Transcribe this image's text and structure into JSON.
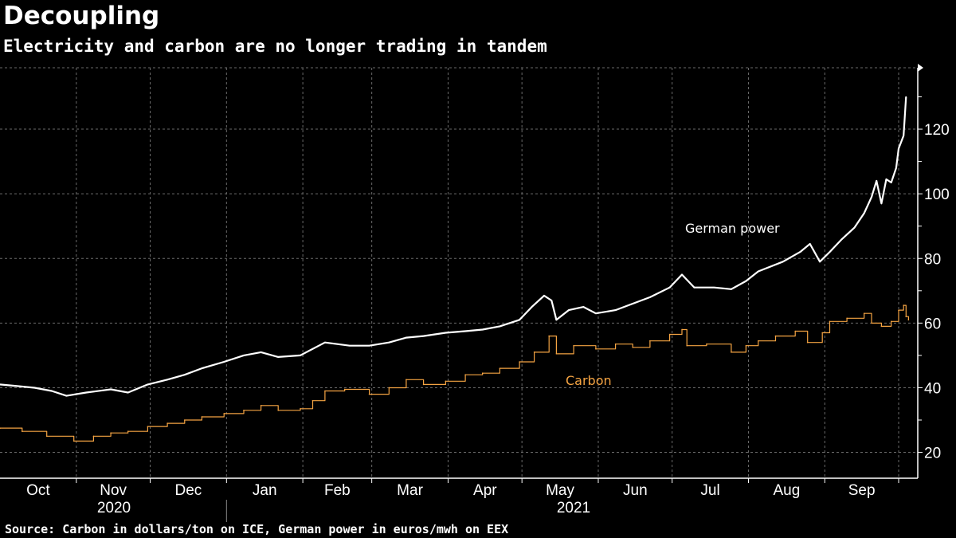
{
  "title": "Decoupling",
  "subtitle": "Electricity and carbon are no longer trading in tandem",
  "source": "Source: Carbon in dollars/ton on ICE, German power in euros/mwh on EEX",
  "chart_data": {
    "type": "line",
    "title": "Decoupling",
    "subtitle": "Electricity and carbon are no longer trading in tandem",
    "xlim": [
      "2020-10-01",
      "2021-10-01"
    ],
    "ylim": [
      12,
      139
    ],
    "y_axis_side": "right",
    "y_ticks": [
      20,
      40,
      60,
      80,
      100,
      120
    ],
    "x_tick_labels": [
      "Oct",
      "Nov",
      "Dec",
      "Jan",
      "Feb",
      "Mar",
      "Apr",
      "May",
      "Jun",
      "Jul",
      "Aug",
      "Sep"
    ],
    "year_labels": [
      "2020",
      "2021"
    ],
    "grid": true,
    "colors": {
      "German power": "#ffffff",
      "Carbon": "#f5a443",
      "background": "#000000"
    },
    "series": [
      {
        "name": "German power",
        "style": "line",
        "points": [
          [
            "2020-10-01",
            41
          ],
          [
            "2020-10-08",
            40.5
          ],
          [
            "2020-10-15",
            40
          ],
          [
            "2020-10-22",
            39
          ],
          [
            "2020-10-28",
            37.5
          ],
          [
            "2020-11-05",
            38.5
          ],
          [
            "2020-11-15",
            39.5
          ],
          [
            "2020-11-22",
            38.5
          ],
          [
            "2020-11-30",
            41
          ],
          [
            "2020-12-08",
            42.5
          ],
          [
            "2020-12-15",
            44
          ],
          [
            "2020-12-22",
            46
          ],
          [
            "2020-12-31",
            48
          ],
          [
            "2021-01-08",
            50
          ],
          [
            "2021-01-15",
            51
          ],
          [
            "2021-01-22",
            49.5
          ],
          [
            "2021-01-31",
            50
          ],
          [
            "2021-02-10",
            54
          ],
          [
            "2021-02-20",
            53
          ],
          [
            "2021-02-28",
            53
          ],
          [
            "2021-03-08",
            54
          ],
          [
            "2021-03-15",
            55.5
          ],
          [
            "2021-03-22",
            56
          ],
          [
            "2021-03-31",
            57
          ],
          [
            "2021-04-08",
            57.5
          ],
          [
            "2021-04-15",
            58
          ],
          [
            "2021-04-22",
            59
          ],
          [
            "2021-04-30",
            61
          ],
          [
            "2021-05-05",
            65
          ],
          [
            "2021-05-10",
            68.5
          ],
          [
            "2021-05-13",
            67
          ],
          [
            "2021-05-15",
            61
          ],
          [
            "2021-05-20",
            64
          ],
          [
            "2021-05-26",
            65
          ],
          [
            "2021-05-31",
            63
          ],
          [
            "2021-06-08",
            64
          ],
          [
            "2021-06-15",
            66
          ],
          [
            "2021-06-22",
            68
          ],
          [
            "2021-06-30",
            71
          ],
          [
            "2021-07-05",
            75
          ],
          [
            "2021-07-10",
            71
          ],
          [
            "2021-07-18",
            71
          ],
          [
            "2021-07-25",
            70.5
          ],
          [
            "2021-07-31",
            73
          ],
          [
            "2021-08-05",
            76
          ],
          [
            "2021-08-15",
            79
          ],
          [
            "2021-08-22",
            82
          ],
          [
            "2021-08-26",
            84.5
          ],
          [
            "2021-08-30",
            79
          ],
          [
            "2021-09-03",
            82
          ],
          [
            "2021-09-08",
            86
          ],
          [
            "2021-09-13",
            89.5
          ],
          [
            "2021-09-17",
            94
          ],
          [
            "2021-09-20",
            99
          ],
          [
            "2021-09-22",
            104
          ],
          [
            "2021-09-24",
            97
          ],
          [
            "2021-09-26",
            104.5
          ],
          [
            "2021-09-28",
            103.5
          ],
          [
            "2021-09-30",
            108
          ],
          [
            "2021-10-01",
            114
          ],
          [
            "2021-10-03",
            118
          ],
          [
            "2021-10-04",
            130
          ]
        ]
      },
      {
        "name": "Carbon",
        "style": "step",
        "points": [
          [
            "2020-10-01",
            27.5
          ],
          [
            "2020-10-10",
            26.5
          ],
          [
            "2020-10-20",
            25
          ],
          [
            "2020-10-31",
            23.5
          ],
          [
            "2020-11-08",
            25
          ],
          [
            "2020-11-15",
            26
          ],
          [
            "2020-11-22",
            26.5
          ],
          [
            "2020-11-30",
            28
          ],
          [
            "2020-12-08",
            29
          ],
          [
            "2020-12-15",
            30
          ],
          [
            "2020-12-22",
            31
          ],
          [
            "2020-12-31",
            32
          ],
          [
            "2021-01-08",
            33
          ],
          [
            "2021-01-15",
            34.5
          ],
          [
            "2021-01-22",
            33
          ],
          [
            "2021-01-31",
            33.5
          ],
          [
            "2021-02-05",
            36
          ],
          [
            "2021-02-10",
            39
          ],
          [
            "2021-02-18",
            39.5
          ],
          [
            "2021-02-28",
            38
          ],
          [
            "2021-03-08",
            40
          ],
          [
            "2021-03-15",
            42.5
          ],
          [
            "2021-03-22",
            41
          ],
          [
            "2021-03-31",
            42
          ],
          [
            "2021-04-08",
            44
          ],
          [
            "2021-04-15",
            44.5
          ],
          [
            "2021-04-22",
            46
          ],
          [
            "2021-04-30",
            48
          ],
          [
            "2021-05-06",
            51
          ],
          [
            "2021-05-12",
            56
          ],
          [
            "2021-05-15",
            50.5
          ],
          [
            "2021-05-22",
            53
          ],
          [
            "2021-05-31",
            52
          ],
          [
            "2021-06-08",
            53.5
          ],
          [
            "2021-06-15",
            52.5
          ],
          [
            "2021-06-22",
            54.5
          ],
          [
            "2021-06-30",
            56.5
          ],
          [
            "2021-07-05",
            58
          ],
          [
            "2021-07-07",
            53
          ],
          [
            "2021-07-15",
            53.5
          ],
          [
            "2021-07-25",
            51
          ],
          [
            "2021-07-31",
            53
          ],
          [
            "2021-08-05",
            54.5
          ],
          [
            "2021-08-12",
            56
          ],
          [
            "2021-08-20",
            57.5
          ],
          [
            "2021-08-25",
            54
          ],
          [
            "2021-08-31",
            57
          ],
          [
            "2021-09-03",
            60.5
          ],
          [
            "2021-09-10",
            61.5
          ],
          [
            "2021-09-17",
            63
          ],
          [
            "2021-09-20",
            60
          ],
          [
            "2021-09-24",
            59
          ],
          [
            "2021-09-28",
            60.5
          ],
          [
            "2021-10-01",
            64
          ],
          [
            "2021-10-03",
            65.5
          ],
          [
            "2021-10-04",
            62
          ],
          [
            "2021-10-05",
            61
          ]
        ]
      }
    ]
  }
}
